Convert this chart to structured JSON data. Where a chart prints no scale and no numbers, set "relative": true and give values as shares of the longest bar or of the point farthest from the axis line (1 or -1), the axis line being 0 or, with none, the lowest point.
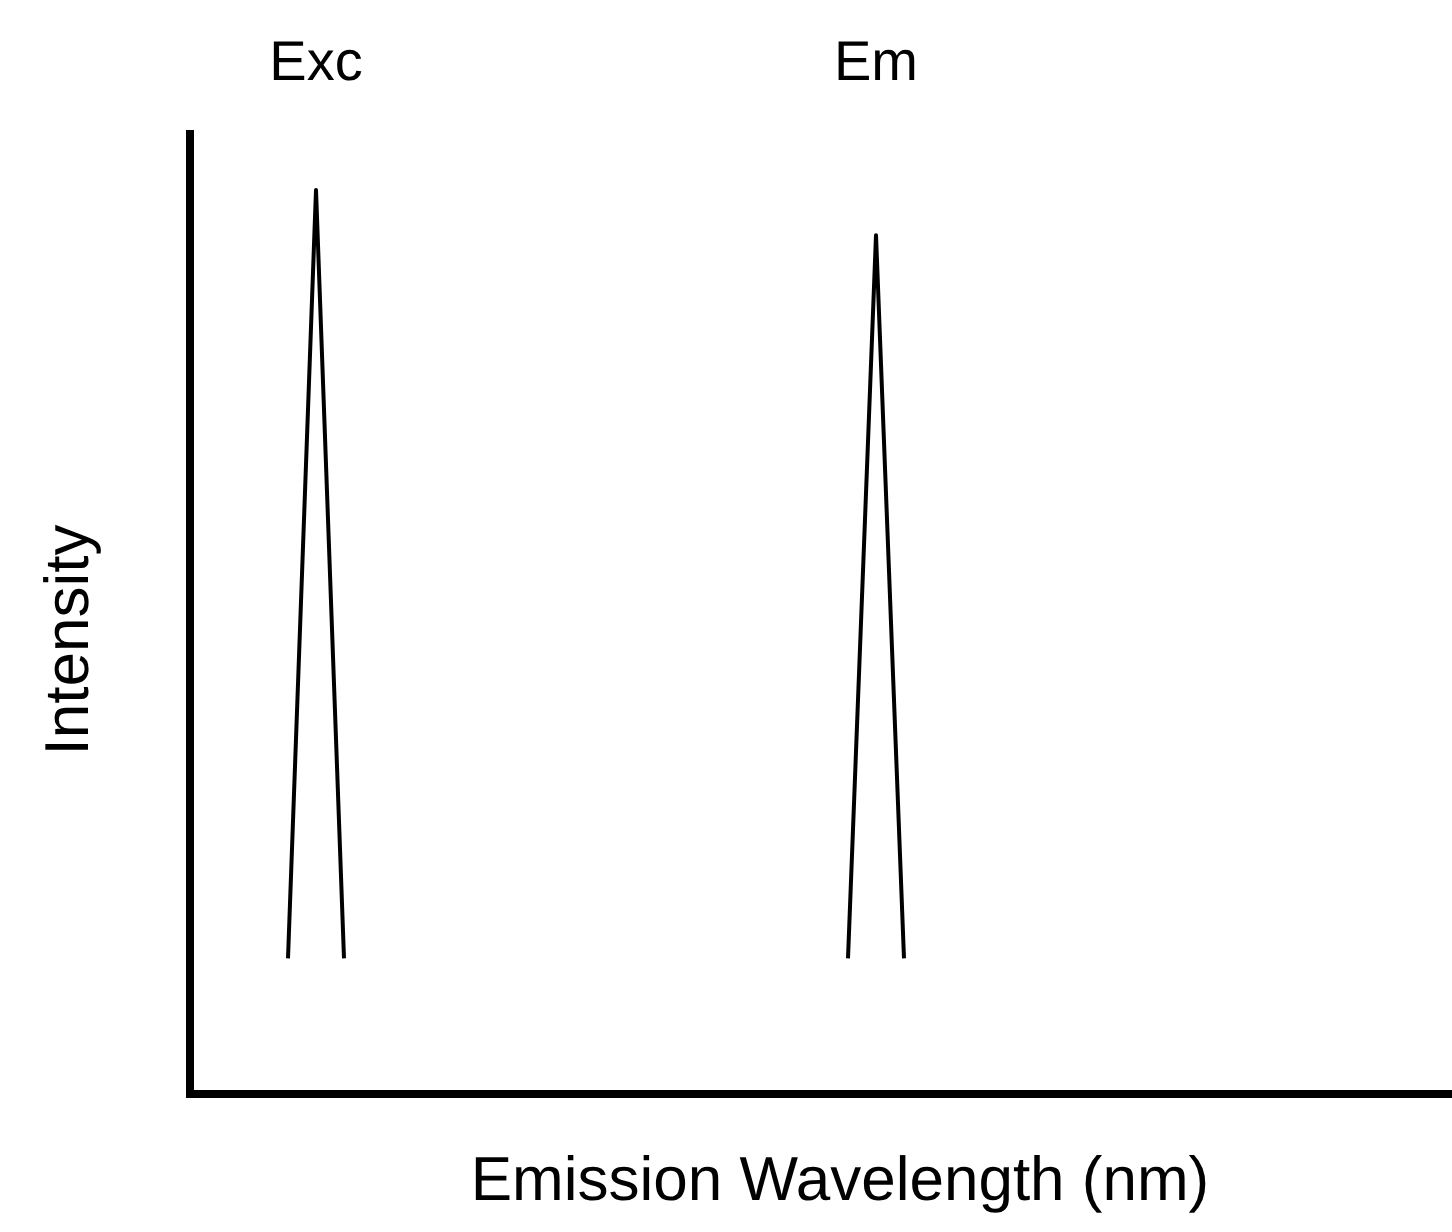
{
  "chart_data": {
    "type": "line",
    "relative": true,
    "xlabel": "Emission Wavelength (nm)",
    "ylabel": "Intensity",
    "marker": "none",
    "line_style": "solid",
    "categories": [
      null,
      null,
      null,
      null,
      null,
      null,
      null,
      null,
      null,
      null,
      null,
      null,
      null,
      null,
      null,
      null,
      null,
      null,
      null,
      null,
      null,
      null,
      null,
      null,
      null,
      null,
      null,
      null,
      null,
      null,
      null,
      null,
      null,
      null,
      null,
      null,
      null,
      null,
      null,
      null,
      null,
      null,
      null,
      null,
      null
    ],
    "series": [
      {
        "name": "Exc",
        "color": "#000000",
        "values": [
          null,
          null,
          null,
          0.15,
          1,
          0.15,
          null,
          null,
          null,
          null,
          null,
          null,
          null,
          null,
          null,
          null,
          null,
          null,
          null,
          null,
          null,
          null,
          null,
          null,
          null,
          null,
          null,
          null,
          null,
          null,
          null,
          null,
          null,
          null,
          null,
          null,
          null,
          null,
          null,
          null,
          null,
          null,
          null,
          null,
          null
        ]
      },
      {
        "name": "Em",
        "color": "#000000",
        "values": [
          null,
          null,
          null,
          null,
          null,
          null,
          null,
          null,
          null,
          null,
          null,
          null,
          null,
          null,
          null,
          null,
          null,
          null,
          null,
          null,
          null,
          null,
          null,
          0.15,
          0.95,
          0.15,
          null,
          null,
          null,
          null,
          null,
          null,
          null,
          null,
          null,
          null,
          null,
          null,
          null,
          null,
          null,
          null,
          null,
          null,
          null
        ]
      }
    ]
  }
}
